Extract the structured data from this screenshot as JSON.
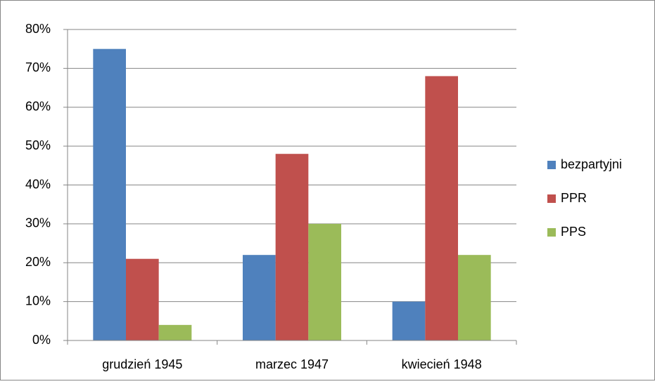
{
  "chart_data": {
    "type": "bar",
    "categories": [
      "grudzień 1945",
      "marzec 1947",
      "kwiecień 1948"
    ],
    "series": [
      {
        "name": "bezpartyjni",
        "color": "#4f81bd",
        "values": [
          75,
          22,
          10
        ]
      },
      {
        "name": "PPR",
        "color": "#c0504d",
        "values": [
          21,
          48,
          68
        ]
      },
      {
        "name": "PPS",
        "color": "#9bbb59",
        "values": [
          4,
          30,
          22
        ]
      }
    ],
    "ylim": [
      0,
      80
    ],
    "yticks": [
      {
        "value": 0,
        "label": "0%"
      },
      {
        "value": 10,
        "label": "10%"
      },
      {
        "value": 20,
        "label": "20%"
      },
      {
        "value": 30,
        "label": "30%"
      },
      {
        "value": 40,
        "label": "40%"
      },
      {
        "value": 50,
        "label": "50%"
      },
      {
        "value": 60,
        "label": "60%"
      },
      {
        "value": 70,
        "label": "70%"
      },
      {
        "value": 80,
        "label": "80%"
      }
    ],
    "grid": true,
    "legend": "right"
  }
}
